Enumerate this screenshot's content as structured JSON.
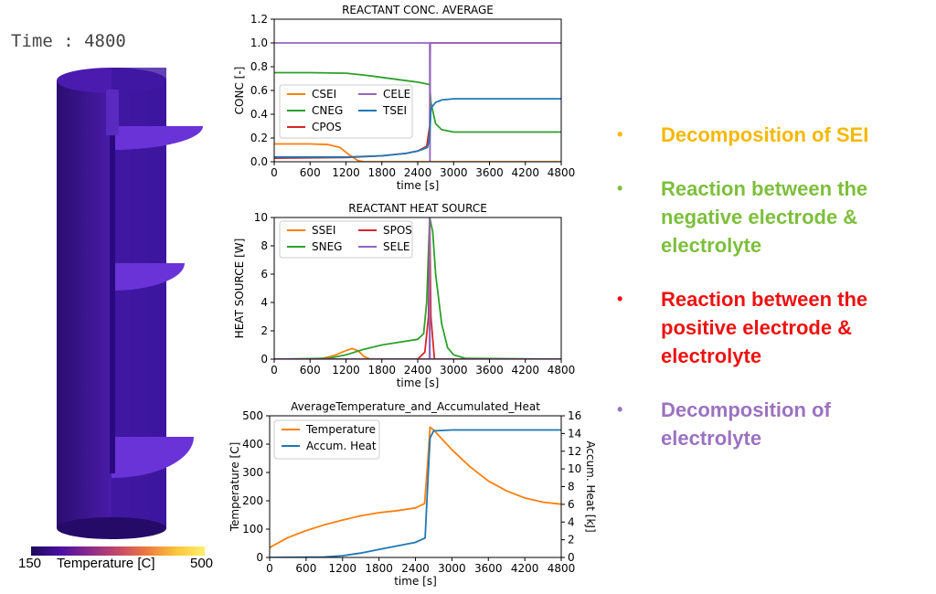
{
  "time_label": "Time : 4800",
  "colorbar": {
    "min": "150",
    "max": "500",
    "title": "Temperature [C]"
  },
  "bullets": [
    {
      "text": "Decomposition of SEI",
      "color": "#f5b800"
    },
    {
      "text": "Reaction between the negative electrode & electrolyte",
      "color": "#7dbf3c"
    },
    {
      "text": "Reaction between the positive electrode & electrolyte",
      "color": "#ee1111"
    },
    {
      "text": "Decomposition of electrolyte",
      "color": "#9b72c0"
    }
  ],
  "chart_data": [
    {
      "type": "line",
      "title": "REACTANT CONC. AVERAGE",
      "xlabel": "time [s]",
      "ylabel": "CONC [-]",
      "xlim": [
        0,
        4800
      ],
      "ylim": [
        0,
        1.2
      ],
      "xticks": [
        "0",
        "600",
        "1200",
        "1800",
        "2400",
        "3000",
        "3600",
        "4200",
        "4800"
      ],
      "yticks": [
        "0.0",
        "0.2",
        "0.4",
        "0.6",
        "0.8",
        "1.0",
        "1.2"
      ],
      "legend": "center-left",
      "series": [
        {
          "name": "CSEI",
          "color": "#ff7f0e",
          "x": [
            0,
            600,
            900,
            1100,
            1250,
            1400,
            1500,
            2600,
            4800
          ],
          "y": [
            0.15,
            0.15,
            0.145,
            0.12,
            0.06,
            0.01,
            0,
            0,
            0
          ]
        },
        {
          "name": "CNEG",
          "color": "#2ca02c",
          "x": [
            0,
            600,
            1200,
            1500,
            1800,
            2100,
            2400,
            2600,
            2620,
            2700,
            2800,
            3000,
            4800
          ],
          "y": [
            0.75,
            0.75,
            0.745,
            0.73,
            0.71,
            0.69,
            0.67,
            0.65,
            0.5,
            0.32,
            0.27,
            0.25,
            0.25
          ]
        },
        {
          "name": "CPOS",
          "color": "#d62728",
          "x": [
            0,
            1200,
            1800,
            2200,
            2400,
            2550,
            2600,
            2610,
            4800
          ],
          "y": [
            0.03,
            0.035,
            0.05,
            0.07,
            0.09,
            0.13,
            0.3,
            1.0,
            1.0
          ]
        },
        {
          "name": "CELE",
          "color": "#9467bd",
          "x": [
            0,
            2600,
            2605,
            2610,
            4800
          ],
          "y": [
            1.0,
            1.0,
            0.0,
            1.0,
            1.0
          ]
        },
        {
          "name": "TSEI",
          "color": "#1f77b4",
          "x": [
            0,
            1200,
            1800,
            2200,
            2400,
            2560,
            2600,
            2620,
            2700,
            2800,
            3000,
            4800
          ],
          "y": [
            0.04,
            0.04,
            0.05,
            0.07,
            0.09,
            0.12,
            0.2,
            0.45,
            0.5,
            0.52,
            0.53,
            0.53
          ]
        }
      ]
    },
    {
      "type": "line",
      "title": "REACTANT HEAT SOURCE",
      "xlabel": "time [s]",
      "ylabel": "HEAT SOURCE [W]",
      "xlim": [
        0,
        4800
      ],
      "ylim": [
        0,
        10
      ],
      "xticks": [
        "0",
        "600",
        "1200",
        "1800",
        "2400",
        "3000",
        "3600",
        "4200",
        "4800"
      ],
      "yticks": [
        "0",
        "2",
        "4",
        "6",
        "8",
        "10"
      ],
      "legend": "top-left",
      "series": [
        {
          "name": "SSEI",
          "color": "#ff7f0e",
          "x": [
            0,
            600,
            800,
            1000,
            1200,
            1300,
            1400,
            1500,
            1600,
            4800
          ],
          "y": [
            0,
            0,
            0.05,
            0.25,
            0.6,
            0.75,
            0.6,
            0.2,
            0,
            0
          ]
        },
        {
          "name": "SNEG",
          "color": "#2ca02c",
          "x": [
            0,
            900,
            1200,
            1500,
            1800,
            2100,
            2400,
            2500,
            2550,
            2600,
            2650,
            2700,
            2800,
            2900,
            3000,
            3200,
            4800
          ],
          "y": [
            0,
            0.05,
            0.3,
            0.7,
            1.0,
            1.2,
            1.4,
            1.8,
            4,
            10,
            9,
            6,
            2.5,
            0.8,
            0.3,
            0.05,
            0
          ]
        },
        {
          "name": "SPOS",
          "color": "#d62728",
          "x": [
            0,
            2400,
            2520,
            2580,
            2600,
            2620,
            2680,
            4800
          ],
          "y": [
            0,
            0,
            0.5,
            3,
            10,
            3,
            0,
            0
          ]
        },
        {
          "name": "SELE",
          "color": "#9467bd",
          "x": [
            0,
            2595,
            2600,
            2605,
            4800
          ],
          "y": [
            0,
            0,
            10,
            0,
            0
          ]
        }
      ]
    },
    {
      "type": "line",
      "title": "AverageTemperature_and_Accumulated_Heat",
      "xlabel": "time [s]",
      "ylabel": "Temperature [C]",
      "ylabel_right": "Accum. Heat [kJ]",
      "xlim": [
        0,
        4800
      ],
      "ylim": [
        0,
        500
      ],
      "ylim_right": [
        0,
        16
      ],
      "xticks": [
        "0",
        "600",
        "1200",
        "1800",
        "2400",
        "3000",
        "3600",
        "4200",
        "4800"
      ],
      "yticks": [
        "0",
        "100",
        "200",
        "300",
        "400",
        "500"
      ],
      "yticks_right": [
        "0",
        "2",
        "4",
        "6",
        "8",
        "10",
        "12",
        "14",
        "16"
      ],
      "legend": "top-left",
      "series": [
        {
          "name": "Temperature",
          "axis": "left",
          "color": "#ff7f0e",
          "x": [
            0,
            300,
            600,
            900,
            1200,
            1500,
            1800,
            2100,
            2400,
            2550,
            2600,
            2640,
            2700,
            3000,
            3300,
            3600,
            3900,
            4200,
            4500,
            4800
          ],
          "y": [
            35,
            70,
            95,
            115,
            132,
            147,
            158,
            165,
            175,
            190,
            330,
            460,
            450,
            380,
            320,
            270,
            235,
            210,
            195,
            188
          ]
        },
        {
          "name": "Accum. Heat",
          "axis": "right",
          "color": "#1f77b4",
          "x": [
            0,
            900,
            1200,
            1500,
            1800,
            2100,
            2400,
            2560,
            2600,
            2640,
            2700,
            3000,
            4800
          ],
          "y": [
            0,
            0.05,
            0.2,
            0.5,
            0.9,
            1.3,
            1.7,
            2.2,
            8,
            13.5,
            14.3,
            14.4,
            14.4
          ]
        }
      ]
    }
  ]
}
